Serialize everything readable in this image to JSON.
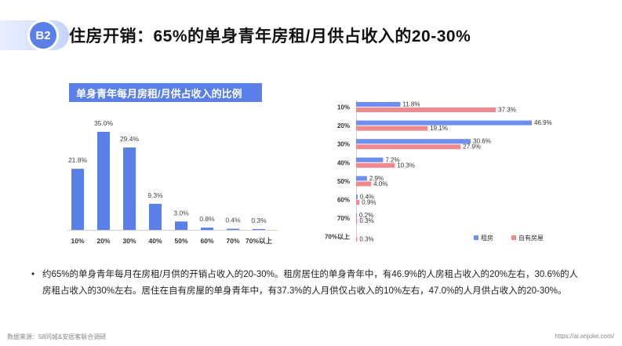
{
  "header": {
    "badge": "B2",
    "title": "住房开销：65%的单身青年房租/月供占收入的20-30%"
  },
  "chart_data": [
    {
      "type": "bar",
      "title": "单身青年每月房租/月供占收入的比例",
      "categories": [
        "10%",
        "20%",
        "30%",
        "40%",
        "50%",
        "60%",
        "70%",
        "70%以上"
      ],
      "values": [
        21.8,
        35.0,
        29.4,
        9.3,
        3.0,
        0.8,
        0.4,
        0.3
      ],
      "value_labels": [
        "21.8%",
        "35.0%",
        "29.4%",
        "9.3%",
        "3.0%",
        "0.8%",
        "0.4%",
        "0.3%"
      ],
      "color": "#5b7fe8",
      "ylim": [
        0,
        35
      ]
    },
    {
      "type": "bar",
      "orientation": "horizontal",
      "categories": [
        "10%",
        "20%",
        "30%",
        "40%",
        "50%",
        "60%",
        "70%",
        "70%以上"
      ],
      "series": [
        {
          "name": "租房",
          "color": "#6f8ff0",
          "values": [
            11.8,
            46.9,
            30.6,
            7.2,
            2.9,
            0.4,
            0.2,
            null
          ],
          "labels": [
            "11.8%",
            "46.9%",
            "30.6%",
            "7.2%",
            "2.9%",
            "0.4%",
            "0.2%",
            ""
          ]
        },
        {
          "name": "自有房屋",
          "color": "#f08a91",
          "values": [
            37.3,
            19.1,
            27.9,
            10.3,
            4.0,
            0.9,
            0.3,
            0.3
          ],
          "labels": [
            "37.3%",
            "19.1%",
            "27.9%",
            "10.3%",
            "4.0%",
            "0.9%",
            "0.3%",
            "0.3%"
          ]
        }
      ],
      "xlim": [
        0,
        46.9
      ],
      "legend": "bottom-right"
    }
  ],
  "note": {
    "bullet": "•",
    "text": "约65%的单身青年每月在房租/月供的开销占收入的20-30%。租房居住的单身青年中，有46.9%的人房租占收入的20%左右，30.6%的人房租占收入的30%左右。居住在自有房屋的单身青年中，有37.3%的人月供仅占收入的10%左右，47.0%的人月供占收入的20-30%。"
  },
  "footer": {
    "source": "数据来源：58同城&安居客联合调研",
    "url": "https://ai.anjuke.com/"
  }
}
